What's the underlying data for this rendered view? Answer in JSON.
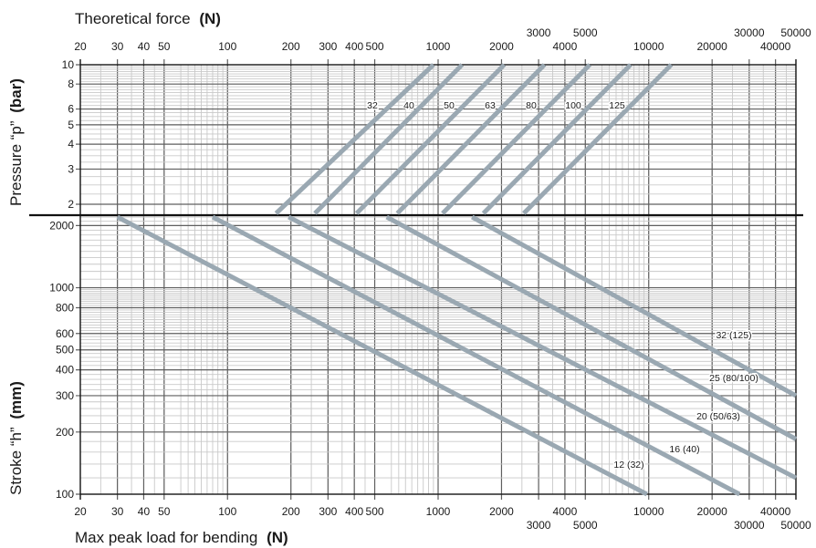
{
  "chart_data": [
    {
      "type": "line",
      "panel": "pressure",
      "top_axis_title": "Theoretical force",
      "top_axis_unit": "(N)",
      "ylabel": "Pressure “p”",
      "ylabel_unit": "(bar)",
      "x_scale": "log",
      "y_scale": "log",
      "xlim": [
        20,
        50000
      ],
      "ylim": [
        1.8,
        10
      ],
      "grid": true,
      "x_ticks": [
        "20",
        "30",
        "40",
        "50",
        "100",
        "200",
        "300",
        "400",
        "500",
        "1000",
        "2000",
        "3000",
        "4000",
        "5000",
        "10000",
        "20000",
        "30000",
        "40000",
        "50000"
      ],
      "y_ticks": [
        "2",
        "3",
        "4",
        "5",
        "6",
        "8",
        "10"
      ],
      "color": "#9aa8b2",
      "series": [
        {
          "name": "32",
          "x": [
            170,
            950
          ],
          "y": [
            1.8,
            10
          ]
        },
        {
          "name": "40",
          "x": [
            260,
            1300
          ],
          "y": [
            1.8,
            10
          ]
        },
        {
          "name": "50",
          "x": [
            410,
            2060
          ],
          "y": [
            1.8,
            10
          ]
        },
        {
          "name": "63",
          "x": [
            640,
            3200
          ],
          "y": [
            1.8,
            10
          ]
        },
        {
          "name": "80",
          "x": [
            1050,
            5250
          ],
          "y": [
            1.8,
            10
          ]
        },
        {
          "name": "100",
          "x": [
            1640,
            8200
          ],
          "y": [
            1.8,
            10
          ]
        },
        {
          "name": "125",
          "x": [
            2550,
            12800
          ],
          "y": [
            1.8,
            10
          ]
        }
      ]
    },
    {
      "type": "line",
      "panel": "stroke",
      "xlabel": "Max peak load for bending",
      "xlabel_unit": "(N)",
      "ylabel": "Stroke “h”",
      "ylabel_unit": "(mm)",
      "x_scale": "log",
      "y_scale": "log",
      "xlim": [
        20,
        50000
      ],
      "ylim": [
        100,
        2200
      ],
      "grid": true,
      "x_ticks": [
        "20",
        "30",
        "40",
        "50",
        "100",
        "200",
        "300",
        "400",
        "500",
        "1000",
        "2000",
        "3000",
        "4000",
        "5000",
        "10000",
        "20000",
        "30000",
        "40000",
        "50000"
      ],
      "y_ticks": [
        "100",
        "200",
        "300",
        "400",
        "500",
        "600",
        "800",
        "1000",
        "2000"
      ],
      "color": "#9aa8b2",
      "series": [
        {
          "name": "12 (32)",
          "x": [
            30,
            9800
          ],
          "y": [
            2200,
            100
          ]
        },
        {
          "name": "16 (40)",
          "x": [
            85,
            27000
          ],
          "y": [
            2200,
            100
          ]
        },
        {
          "name": "20 (50/63)",
          "x": [
            195,
            50000
          ],
          "y": [
            2200,
            120
          ]
        },
        {
          "name": "25 (80/100)",
          "x": [
            570,
            50000
          ],
          "y": [
            2200,
            185
          ]
        },
        {
          "name": "32 (125)",
          "x": [
            1450,
            50000
          ],
          "y": [
            2200,
            300
          ]
        }
      ]
    }
  ]
}
